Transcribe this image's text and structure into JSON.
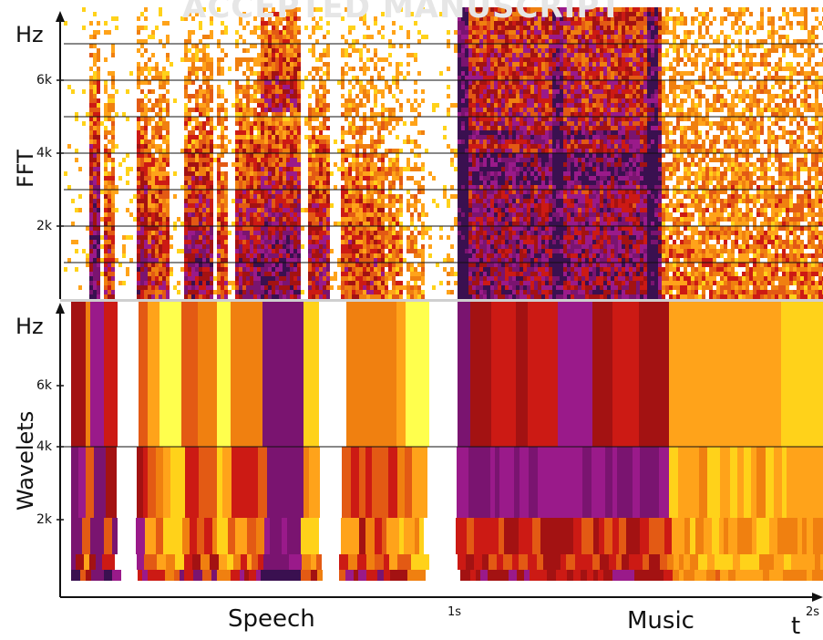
{
  "watermark": "ACCEPTED MANUSCRIPT",
  "fft_panel": {
    "unit": "Hz",
    "label": "FFT",
    "ticks": [
      "6k",
      "4k",
      "2k"
    ]
  },
  "wavelet_panel": {
    "unit": "Hz",
    "label": "Wavelets",
    "ticks": [
      "6k",
      "4k",
      "2k"
    ]
  },
  "time_axis": {
    "label": "t",
    "tick_1s": "1s",
    "tick_2s": "2s",
    "segment_speech": "Speech",
    "segment_music": "Music"
  },
  "colors": {
    "palette": [
      "#ffffff",
      "#ffff4d",
      "#ffd21a",
      "#ffa31a",
      "#f08010",
      "#e35a14",
      "#cc1a14",
      "#a31212",
      "#9a1a8a",
      "#7a1470",
      "#3a1050"
    ]
  }
}
